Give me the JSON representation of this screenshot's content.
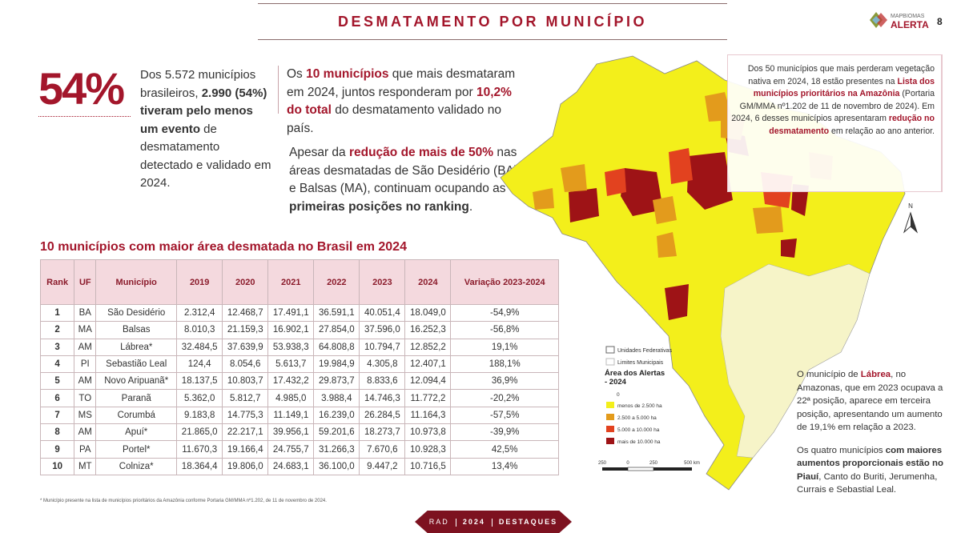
{
  "header": {
    "title": "DESMATAMENTO POR MUNICÍPIO",
    "page": "8",
    "logo_top": "MAPBIOMAS",
    "logo_bottom": "ALERTA"
  },
  "highlight": {
    "big": "54%",
    "text": [
      "Dos 5.572 municípios brasileiros, ",
      "2.990 (54%) tiveram pelo menos um evento",
      " de desmatamento detectado e validado em 2024."
    ]
  },
  "summary": {
    "p1": [
      "Os ",
      "10 municípios",
      " que mais desmataram em 2024, juntos responderam por ",
      "10,2% do total",
      " do desmatamento validado no país."
    ],
    "p2": [
      "Apesar da ",
      "redução de mais de 50%",
      " nas áreas desmatadas de São Desidério (BA) e Balsas (MA), continuam ocupando as ",
      "primeiras posições no ranking",
      "."
    ]
  },
  "table": {
    "title": "10 municípios com maior área desmatada no Brasil em 2024",
    "columns": [
      "Rank",
      "UF",
      "Município",
      "2019",
      "2020",
      "2021",
      "2022",
      "2023",
      "2024",
      "Variação 2023-2024"
    ],
    "rows": [
      [
        "1",
        "BA",
        "São Desidério",
        "2.312,4",
        "12.468,7",
        "17.491,1",
        "36.591,1",
        "40.051,4",
        "18.049,0",
        "-54,9%"
      ],
      [
        "2",
        "MA",
        "Balsas",
        "8.010,3",
        "21.159,3",
        "16.902,1",
        "27.854,0",
        "37.596,0",
        "16.252,3",
        "-56,8%"
      ],
      [
        "3",
        "AM",
        "Lábrea*",
        "32.484,5",
        "37.639,9",
        "53.938,3",
        "64.808,8",
        "10.794,7",
        "12.852,2",
        "19,1%"
      ],
      [
        "4",
        "PI",
        "Sebastião Leal",
        "124,4",
        "8.054,6",
        "5.613,7",
        "19.984,9",
        "4.305,8",
        "12.407,1",
        "188,1%"
      ],
      [
        "5",
        "AM",
        "Novo Aripuanã*",
        "18.137,5",
        "10.803,7",
        "17.432,2",
        "29.873,7",
        "8.833,6",
        "12.094,4",
        "36,9%"
      ],
      [
        "6",
        "TO",
        "Paranã",
        "5.362,0",
        "5.812,7",
        "4.985,0",
        "3.988,4",
        "14.746,3",
        "11.772,2",
        "-20,2%"
      ],
      [
        "7",
        "MS",
        "Corumbá",
        "9.183,8",
        "14.775,3",
        "11.149,1",
        "16.239,0",
        "26.284,5",
        "11.164,3",
        "-57,5%"
      ],
      [
        "8",
        "AM",
        "Apuí*",
        "21.865,0",
        "22.217,1",
        "39.956,1",
        "59.201,6",
        "18.273,7",
        "10.973,8",
        "-39,9%"
      ],
      [
        "9",
        "PA",
        "Portel*",
        "11.670,3",
        "19.166,4",
        "24.755,7",
        "31.266,3",
        "7.670,6",
        "10.928,3",
        "42,5%"
      ],
      [
        "10",
        "MT",
        "Colniza*",
        "18.364,4",
        "19.806,0",
        "24.683,1",
        "36.100,0",
        "9.447,2",
        "10.716,5",
        "13,4%"
      ]
    ],
    "footnote": "* Município presente na lista de municípios prioritários da Amazônia conforme Portaria GM/MMA nº1.202, de 11 de novembro de 2024."
  },
  "note_top": [
    "Dos 50 municípios que mais perderam vegetação nativa em 2024, 18 estão presentes na ",
    "Lista dos municípios prioritários na Amazônia",
    " (Portaria GM/MMA nº1.202 de 11 de novembro de 2024). Em 2024, 6 desses municípios apresentaram ",
    "redução no desmatamento",
    " em relação ao ano anterior."
  ],
  "note_bottom": {
    "p1": [
      "O município de ",
      "Lábrea",
      ", no Amazonas, que em 2023 ocupava a 22ª posição, aparece em terceira posição, apresentando um aumento de 19,1% em relação a 2023."
    ],
    "p2": [
      "Os quatro municípios ",
      "com maiores aumentos proporcionais estão no Piauí",
      ", Canto do Buriti, Jerumenha, Currais e Sebastial Leal."
    ]
  },
  "map": {
    "north": "N",
    "boundaries": [
      "Unidades Federativas",
      "Limites Municipais"
    ],
    "legend_title": "Área dos Alertas - 2024",
    "legend_zero": "0",
    "legend": [
      {
        "label": "menos de 2.500 ha",
        "color": "#f3ef1b"
      },
      {
        "label": "2.500 a 5.000 ha",
        "color": "#e39b1c"
      },
      {
        "label": "5.000 a 10.000 ha",
        "color": "#e2421f"
      },
      {
        "label": "mais de 10.000 ha",
        "color": "#9e1316"
      }
    ],
    "scale": [
      "250",
      "0",
      "250",
      "500 km"
    ]
  },
  "footer": [
    "RAD",
    "2024",
    "DESTAQUES"
  ]
}
